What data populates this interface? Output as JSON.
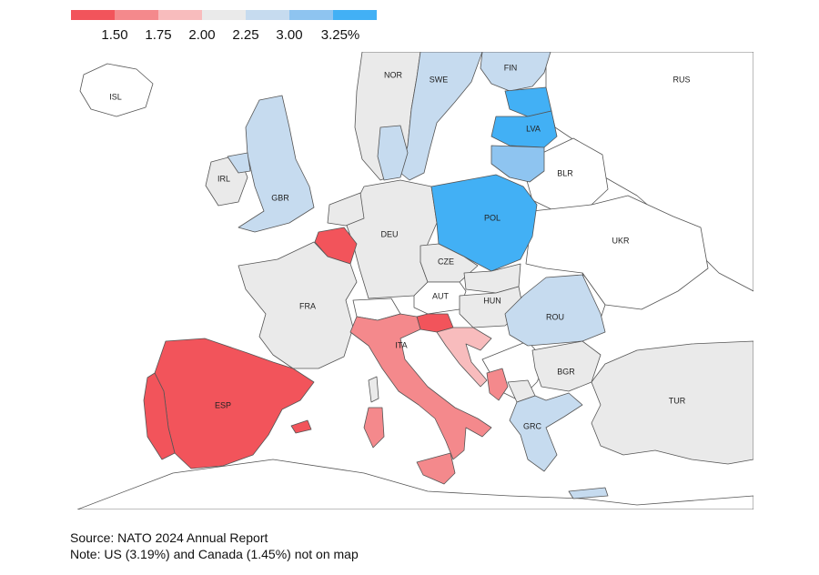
{
  "legend": {
    "colors": [
      "#f2545b",
      "#f4898c",
      "#f8bcbd",
      "#eaeaea",
      "#c6dbef",
      "#8ec4f0",
      "#42b0f5"
    ],
    "ticks": [
      "1.50",
      "1.75",
      "2.00",
      "2.25",
      "3.00",
      "3.25%"
    ]
  },
  "countries": {
    "ISL": "ISL",
    "NOR": "NOR",
    "SWE": "SWE",
    "FIN": "FIN",
    "RUS": "RUS",
    "IRL": "IRL",
    "GBR": "GBR",
    "LVA": "LVA",
    "BLR": "BLR",
    "DEU": "DEU",
    "POL": "POL",
    "UKR": "UKR",
    "CZE": "CZE",
    "FRA": "FRA",
    "AUT": "AUT",
    "HUN": "HUN",
    "ROU": "ROU",
    "ITA": "ITA",
    "BGR": "BGR",
    "ESP": "ESP",
    "TUR": "TUR",
    "GRC": "GRC"
  },
  "footer": {
    "source": "Source: NATO 2024 Annual Report",
    "note": "Note: US (3.19%) and Canada (1.45%) not on map"
  }
}
